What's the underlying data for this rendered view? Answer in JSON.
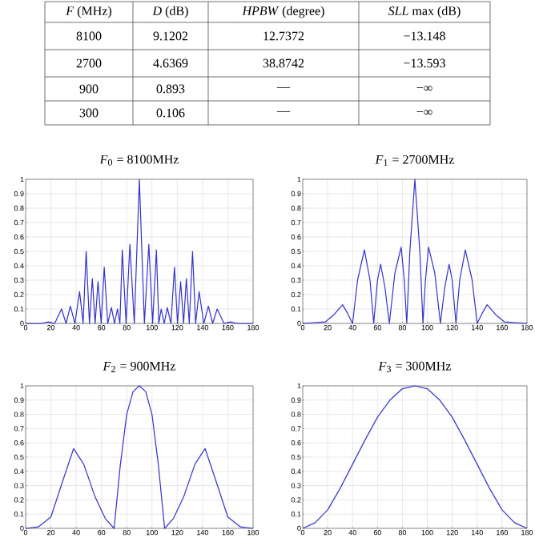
{
  "chart_data": [
    {
      "type": "other",
      "annotations": [
        "*F* (MHz)",
        "*D* (dB)",
        "*HPBW* (degree)",
        "*SLL* max (dB)",
        "8100",
        "9.1202",
        "12.7372",
        "−13.148",
        "2700",
        "4.6369",
        "38.8742",
        "−13.593",
        "900",
        "0.893",
        "—",
        "−∞",
        "300",
        "0.106",
        "—",
        "−∞"
      ]
    },
    {
      "type": "line",
      "title": "*F*$_{0}$ = 8100MHz",
      "color": "#3333cc",
      "grid": true,
      "xlim": [
        0,
        180
      ],
      "ylim": [
        0,
        1
      ],
      "xticks": [
        0,
        20,
        40,
        60,
        80,
        100,
        120,
        140,
        160,
        180
      ],
      "yticks": [
        0,
        0.1,
        0.2,
        0.3,
        0.4,
        0.5,
        0.6,
        0.7,
        0.8,
        0.9,
        1
      ],
      "x": [
        0,
        12,
        18,
        23,
        28.4,
        32,
        35.4,
        39,
        42.7,
        45.5,
        47.9,
        50.5,
        52.8,
        55,
        57.3,
        59.8,
        62.2,
        65,
        67.9,
        70.3,
        72.7,
        74.6,
        76.5,
        79.5,
        82.5,
        86,
        90,
        94,
        97.5,
        100.5,
        103.5,
        105.4,
        107.3,
        109.7,
        112.1,
        115,
        117.8,
        120.2,
        122.7,
        125,
        127.2,
        129.5,
        132.1,
        134.5,
        137.3,
        141,
        144.6,
        148,
        151.6,
        157,
        162,
        168,
        180
      ],
      "values": [
        0,
        0,
        0.01,
        0,
        0.1,
        0,
        0.12,
        0,
        0.22,
        0,
        0.5,
        0,
        0.31,
        0,
        0.29,
        0,
        0.39,
        0,
        0.11,
        0,
        0.1,
        0,
        0.51,
        0,
        0.55,
        0,
        1,
        0,
        0.55,
        0,
        0.51,
        0,
        0.1,
        0,
        0.11,
        0,
        0.39,
        0,
        0.29,
        0,
        0.31,
        0,
        0.5,
        0,
        0.22,
        0,
        0.12,
        0,
        0.1,
        0,
        0.01,
        0,
        0
      ]
    },
    {
      "type": "line",
      "title": "*F*$_{1}$ = 2700MHz",
      "color": "#3333cc",
      "grid": true,
      "xlim": [
        0,
        180
      ],
      "ylim": [
        0,
        1
      ],
      "xticks": [
        0,
        20,
        40,
        60,
        80,
        100,
        120,
        140,
        160,
        180
      ],
      "yticks": [
        0,
        0.1,
        0.2,
        0.3,
        0.4,
        0.5,
        0.6,
        0.7,
        0.8,
        0.9,
        1
      ],
      "x": [
        0,
        18,
        25,
        32,
        36,
        40,
        44,
        49.5,
        54,
        57,
        60,
        62.5,
        66,
        69.5,
        74,
        79,
        81.5,
        83.5,
        86,
        90,
        94,
        96.5,
        98.5,
        101,
        106,
        110.5,
        114,
        117.5,
        120,
        123,
        126,
        130.5,
        136,
        140,
        144,
        148,
        155,
        162,
        180
      ],
      "values": [
        0,
        0.01,
        0.06,
        0.13,
        0.07,
        0,
        0.3,
        0.51,
        0.3,
        0,
        0.3,
        0.41,
        0.25,
        0,
        0.35,
        0.53,
        0.3,
        0,
        0.5,
        1,
        0.5,
        0,
        0.3,
        0.53,
        0.35,
        0,
        0.25,
        0.41,
        0.3,
        0,
        0.3,
        0.51,
        0.3,
        0,
        0.07,
        0.13,
        0.06,
        0.01,
        0
      ]
    },
    {
      "type": "line",
      "title": "*F*$_{2}$ = 900MHz",
      "color": "#3333cc",
      "grid": true,
      "xlim": [
        0,
        180
      ],
      "ylim": [
        0,
        1
      ],
      "xticks": [
        0,
        20,
        40,
        60,
        80,
        100,
        120,
        140,
        160,
        180
      ],
      "yticks": [
        0,
        0.1,
        0.2,
        0.3,
        0.4,
        0.5,
        0.6,
        0.7,
        0.8,
        0.9,
        1
      ],
      "x": [
        0,
        10,
        20,
        30,
        38,
        46,
        55,
        63,
        70,
        75,
        80,
        85,
        90,
        95,
        100,
        105,
        110,
        117,
        125,
        134,
        142,
        150,
        160,
        170,
        180
      ],
      "values": [
        0,
        0.01,
        0.08,
        0.35,
        0.56,
        0.45,
        0.22,
        0.07,
        0,
        0.45,
        0.8,
        0.96,
        1,
        0.96,
        0.8,
        0.45,
        0,
        0.07,
        0.22,
        0.45,
        0.56,
        0.35,
        0.08,
        0.01,
        0
      ]
    },
    {
      "type": "line",
      "title": "*F*$_{3}$ = 300MHz",
      "color": "#3333cc",
      "grid": true,
      "xlim": [
        0,
        180
      ],
      "ylim": [
        0,
        1
      ],
      "xticks": [
        0,
        20,
        40,
        60,
        80,
        100,
        120,
        140,
        160,
        180
      ],
      "yticks": [
        0,
        0.1,
        0.2,
        0.3,
        0.4,
        0.5,
        0.6,
        0.7,
        0.8,
        0.9,
        1
      ],
      "x": [
        0,
        10,
        20,
        30,
        40,
        50,
        60,
        70,
        80,
        90,
        100,
        110,
        120,
        130,
        140,
        150,
        160,
        170,
        180
      ],
      "values": [
        0,
        0.04,
        0.13,
        0.28,
        0.45,
        0.62,
        0.78,
        0.9,
        0.98,
        1,
        0.98,
        0.9,
        0.78,
        0.62,
        0.45,
        0.28,
        0.13,
        0.04,
        0
      ]
    }
  ]
}
